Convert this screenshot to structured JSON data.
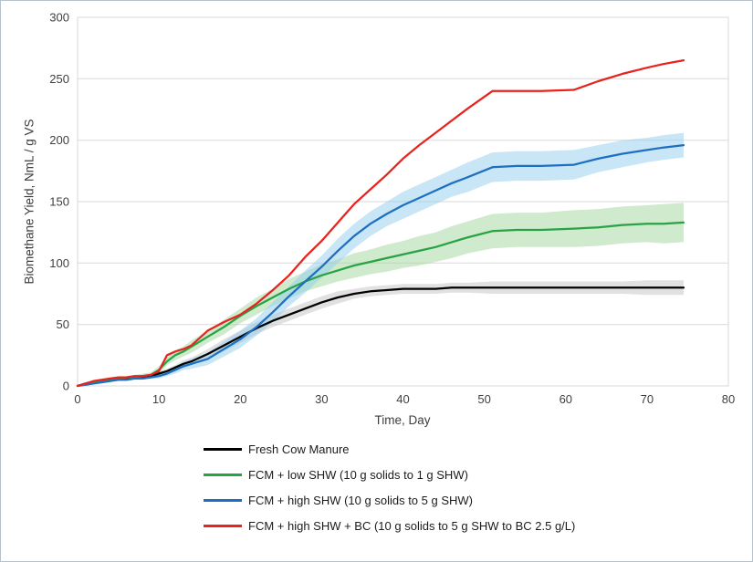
{
  "chart_data": {
    "type": "line",
    "title": "",
    "xlabel": "Time, Day",
    "ylabel": "Biomethane Yield, NmL / g VS",
    "xlim": [
      0,
      80
    ],
    "ylim": [
      0,
      300
    ],
    "x_ticks": [
      0,
      10,
      20,
      30,
      40,
      50,
      60,
      70,
      80
    ],
    "y_ticks": [
      0,
      50,
      100,
      150,
      200,
      250,
      300
    ],
    "grid": "horizontal-only",
    "legend_position": "bottom-left",
    "grid_color": "#d9d9d9",
    "series": [
      {
        "name": "Fresh Cow Manure",
        "color": "#000000",
        "band_color": "#c4c4c4",
        "x": [
          0,
          1,
          2,
          3,
          4,
          5,
          6,
          7,
          8,
          9,
          10,
          11,
          12,
          13,
          14,
          16,
          18,
          20,
          22,
          24,
          26,
          28,
          30,
          32,
          34,
          36,
          38,
          40,
          42,
          44,
          46,
          48,
          51,
          54,
          57,
          61,
          64,
          67,
          70,
          72,
          74.5
        ],
        "y": [
          0,
          2,
          3,
          4,
          5,
          6,
          6,
          7,
          7,
          8,
          10,
          12,
          15,
          18,
          20,
          26,
          33,
          40,
          47,
          53,
          58,
          63,
          68,
          72,
          75,
          77,
          78,
          79,
          79,
          79,
          80,
          80,
          80,
          80,
          80,
          80,
          80,
          80,
          80,
          80,
          80
        ],
        "band": [
          0,
          0,
          1,
          1,
          1,
          1,
          1,
          1,
          1,
          1,
          2,
          2,
          2,
          3,
          3,
          4,
          5,
          5,
          5,
          5,
          5,
          5,
          5,
          5,
          4,
          4,
          4,
          4,
          4,
          4,
          4,
          4,
          5,
          5,
          5,
          5,
          5,
          5,
          6,
          6,
          6
        ]
      },
      {
        "name": "FCM + low SHW (10 g solids to 1 g SHW)",
        "color": "#27a343",
        "band_color": "#9fd69b",
        "x": [
          0,
          1,
          2,
          3,
          4,
          5,
          6,
          7,
          8,
          9,
          10,
          11,
          12,
          13,
          14,
          16,
          18,
          20,
          22,
          24,
          26,
          28,
          30,
          32,
          34,
          36,
          38,
          40,
          42,
          44,
          46,
          48,
          51,
          54,
          57,
          61,
          64,
          67,
          70,
          72,
          74.5
        ],
        "y": [
          0,
          2,
          3,
          4,
          5,
          6,
          7,
          7,
          8,
          9,
          13,
          20,
          25,
          28,
          32,
          40,
          48,
          57,
          65,
          72,
          79,
          85,
          90,
          94,
          98,
          101,
          104,
          107,
          110,
          113,
          117,
          121,
          126,
          127,
          127,
          128,
          129,
          131,
          132,
          132,
          133
        ],
        "band": [
          0,
          0,
          1,
          1,
          1,
          1,
          1,
          2,
          2,
          2,
          3,
          3,
          4,
          4,
          5,
          5,
          6,
          6,
          7,
          7,
          8,
          8,
          9,
          9,
          10,
          10,
          11,
          11,
          12,
          12,
          13,
          13,
          14,
          14,
          14,
          15,
          15,
          15,
          15,
          16,
          16
        ]
      },
      {
        "name": "FCM + high SHW (10 g solids to 5 g SHW)",
        "color": "#1e6fc0",
        "band_color": "#92cdee",
        "x": [
          0,
          1,
          2,
          3,
          4,
          5,
          6,
          7,
          8,
          9,
          10,
          11,
          12,
          13,
          14,
          16,
          18,
          20,
          22,
          24,
          26,
          28,
          30,
          32,
          34,
          36,
          38,
          40,
          42,
          44,
          46,
          48,
          51,
          54,
          57,
          61,
          64,
          67,
          70,
          72,
          74.5
        ],
        "y": [
          0,
          1,
          2,
          3,
          4,
          5,
          5,
          6,
          6,
          7,
          8,
          10,
          13,
          16,
          18,
          22,
          30,
          38,
          48,
          60,
          73,
          85,
          97,
          110,
          122,
          132,
          140,
          147,
          153,
          159,
          165,
          170,
          178,
          179,
          179,
          180,
          185,
          189,
          192,
          194,
          196
        ],
        "band": [
          0,
          0,
          1,
          1,
          1,
          1,
          1,
          1,
          1,
          1,
          2,
          2,
          3,
          3,
          4,
          5,
          6,
          7,
          7,
          8,
          8,
          9,
          9,
          10,
          10,
          10,
          10,
          11,
          11,
          11,
          11,
          12,
          12,
          12,
          12,
          12,
          11,
          11,
          10,
          10,
          10
        ]
      },
      {
        "name": "FCM + high SHW + BC (10 g solids to 5 g SHW to BC 2.5 g/L)",
        "color": "#e8231d",
        "band_color": null,
        "x": [
          0,
          1,
          2,
          3,
          4,
          5,
          6,
          7,
          8,
          9,
          10,
          11,
          12,
          13,
          14,
          16,
          18,
          20,
          22,
          24,
          26,
          28,
          30,
          32,
          34,
          36,
          38,
          40,
          42,
          44,
          46,
          48,
          51,
          54,
          57,
          61,
          64,
          67,
          70,
          72,
          74.5
        ],
        "y": [
          0,
          2,
          4,
          5,
          6,
          7,
          7,
          8,
          8,
          9,
          12,
          25,
          28,
          30,
          33,
          45,
          52,
          58,
          67,
          78,
          90,
          105,
          118,
          133,
          148,
          160,
          172,
          185,
          196,
          206,
          216,
          226,
          240,
          240,
          240,
          241,
          248,
          254,
          259,
          262,
          265
        ],
        "band": null
      }
    ]
  }
}
